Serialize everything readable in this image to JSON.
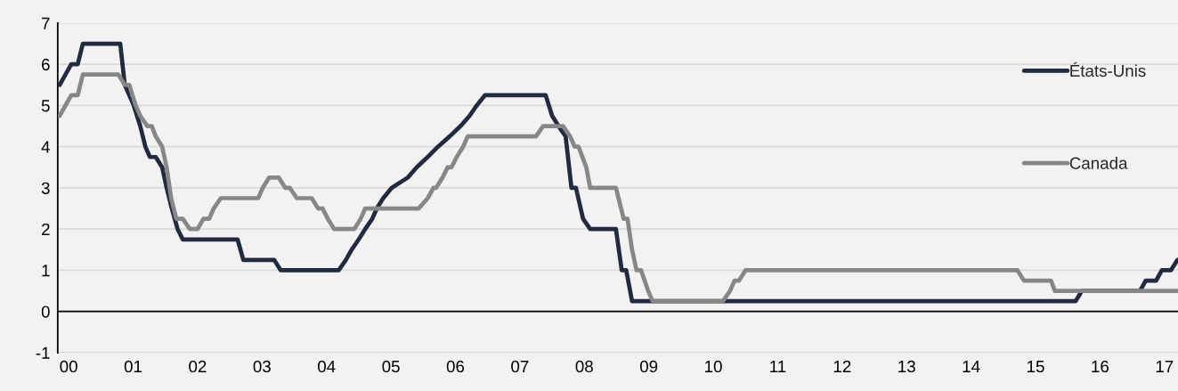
{
  "chart_data": {
    "type": "line",
    "xlim": [
      1999.83,
      2017.21
    ],
    "ylim": [
      -1,
      7
    ],
    "xticks": [
      {
        "value": 2000,
        "label": "00"
      },
      {
        "value": 2001,
        "label": "01"
      },
      {
        "value": 2002,
        "label": "02"
      },
      {
        "value": 2003,
        "label": "03"
      },
      {
        "value": 2004,
        "label": "04"
      },
      {
        "value": 2005,
        "label": "05"
      },
      {
        "value": 2006,
        "label": "06"
      },
      {
        "value": 2007,
        "label": "07"
      },
      {
        "value": 2008,
        "label": "08"
      },
      {
        "value": 2009,
        "label": "09"
      },
      {
        "value": 2010,
        "label": "10"
      },
      {
        "value": 2011,
        "label": "11"
      },
      {
        "value": 2012,
        "label": "12"
      },
      {
        "value": 2013,
        "label": "13"
      },
      {
        "value": 2014,
        "label": "14"
      },
      {
        "value": 2015,
        "label": "15"
      },
      {
        "value": 2016,
        "label": "16"
      },
      {
        "value": 2017,
        "label": "17"
      }
    ],
    "yticks": [
      -1,
      0,
      1,
      2,
      3,
      4,
      5,
      6,
      7
    ],
    "grid": "y",
    "legend": "top right",
    "line_style": "solid",
    "marker": "none",
    "ref_lines": [
      {
        "axis": "y",
        "value": 0,
        "color": "#000000"
      }
    ],
    "series": [
      {
        "name": "États-Unis",
        "color": "#222a3f",
        "x": [
          1999.86,
          2000.04,
          2000.14,
          2000.22,
          2000.8,
          2000.87,
          2001.01,
          2001.11,
          2001.19,
          2001.26,
          2001.35,
          2001.45,
          2001.52,
          2001.6,
          2001.69,
          2001.77,
          2002.62,
          2002.71,
          2003.19,
          2003.29,
          2004.19,
          2004.3,
          2004.39,
          2004.5,
          2004.6,
          2004.71,
          2004.78,
          2004.88,
          2005.01,
          2005.26,
          2005.4,
          2005.57,
          2005.73,
          2005.91,
          2006.08,
          2006.22,
          2006.33,
          2006.46,
          2007.4,
          2007.5,
          2007.6,
          2007.71,
          2007.8,
          2007.87,
          2007.98,
          2008.09,
          2008.49,
          2008.58,
          2008.65,
          2008.74,
          2015.62,
          2015.72,
          2016.62,
          2016.71,
          2016.87,
          2016.96,
          2017.1,
          2017.2
        ],
        "values": [
          5.5,
          6.0,
          6.0,
          6.5,
          6.5,
          5.5,
          5.0,
          4.5,
          4.0,
          3.75,
          3.75,
          3.5,
          3.0,
          2.5,
          2.0,
          1.75,
          1.75,
          1.25,
          1.25,
          1.0,
          1.0,
          1.25,
          1.5,
          1.75,
          2.0,
          2.25,
          2.5,
          2.75,
          3.0,
          3.25,
          3.5,
          3.75,
          4.0,
          4.25,
          4.5,
          4.75,
          5.0,
          5.25,
          5.25,
          4.75,
          4.5,
          4.25,
          3.0,
          3.0,
          2.25,
          2.0,
          2.0,
          1.0,
          1.0,
          0.25,
          0.25,
          0.5,
          0.5,
          0.75,
          0.75,
          1.0,
          1.0,
          1.25
        ]
      },
      {
        "name": "Canada",
        "color": "#878787",
        "x": [
          1999.86,
          2000.04,
          2000.14,
          2000.22,
          2000.77,
          2000.87,
          2000.94,
          2001.04,
          2001.11,
          2001.22,
          2001.29,
          2001.35,
          2001.45,
          2001.52,
          2001.59,
          2001.67,
          2001.77,
          2001.88,
          2002.0,
          2002.09,
          2002.18,
          2002.25,
          2002.36,
          2002.94,
          2003.01,
          2003.11,
          2003.26,
          2003.36,
          2003.43,
          2003.54,
          2003.77,
          2003.87,
          2003.94,
          2004.02,
          2004.12,
          2004.43,
          2004.53,
          2004.6,
          2005.43,
          2005.57,
          2005.66,
          2005.7,
          2005.8,
          2005.88,
          2005.94,
          2006.02,
          2006.12,
          2006.19,
          2007.25,
          2007.36,
          2007.67,
          2007.78,
          2007.85,
          2007.91,
          2008.03,
          2008.09,
          2008.49,
          2008.61,
          2008.67,
          2008.74,
          2008.81,
          2008.88,
          2008.99,
          2009.06,
          2010.15,
          2010.26,
          2010.33,
          2010.4,
          2010.5,
          2014.72,
          2014.82,
          2015.24,
          2015.3,
          2017.21
        ],
        "values": [
          4.75,
          5.25,
          5.25,
          5.75,
          5.75,
          5.5,
          5.5,
          5.0,
          4.75,
          4.5,
          4.5,
          4.25,
          4.0,
          3.5,
          2.75,
          2.25,
          2.25,
          2.0,
          2.0,
          2.25,
          2.25,
          2.5,
          2.75,
          2.75,
          3.0,
          3.25,
          3.25,
          3.0,
          3.0,
          2.75,
          2.75,
          2.5,
          2.5,
          2.25,
          2.0,
          2.0,
          2.25,
          2.5,
          2.5,
          2.75,
          3.0,
          3.0,
          3.25,
          3.5,
          3.5,
          3.75,
          4.0,
          4.25,
          4.25,
          4.5,
          4.5,
          4.25,
          4.0,
          4.0,
          3.5,
          3.0,
          3.0,
          2.25,
          2.25,
          1.5,
          1.0,
          1.0,
          0.5,
          0.25,
          0.25,
          0.5,
          0.75,
          0.75,
          1.0,
          1.0,
          0.75,
          0.75,
          0.5,
          0.5
        ]
      }
    ]
  }
}
